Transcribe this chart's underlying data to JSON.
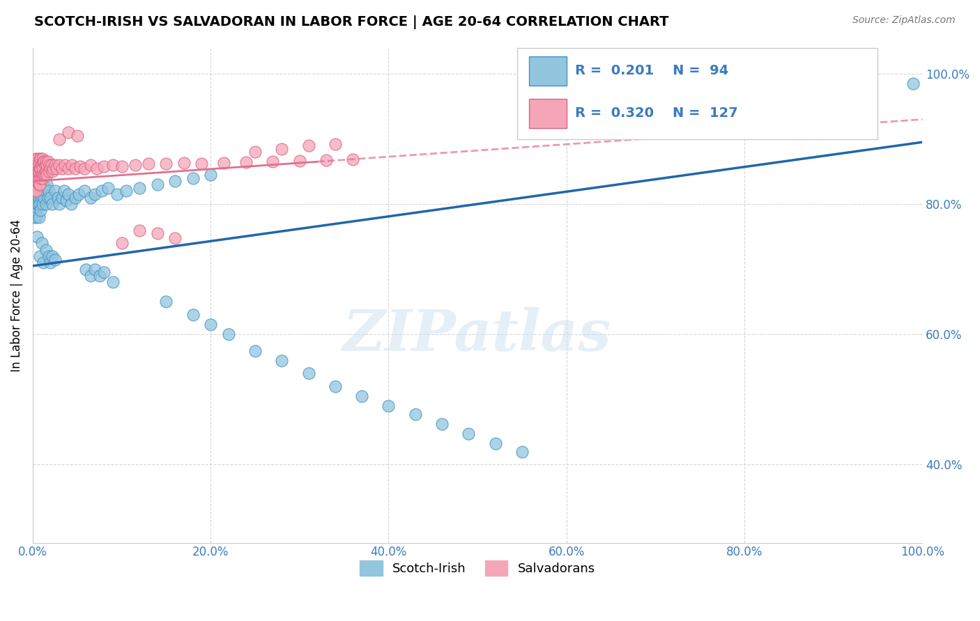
{
  "title": "SCOTCH-IRISH VS SALVADORAN IN LABOR FORCE | AGE 20-64 CORRELATION CHART",
  "source": "Source: ZipAtlas.com",
  "ylabel": "In Labor Force | Age 20-64",
  "xlim": [
    0,
    1.0
  ],
  "ylim": [
    0.28,
    1.04
  ],
  "xticks": [
    0.0,
    0.2,
    0.4,
    0.6,
    0.8,
    1.0
  ],
  "yticks": [
    0.4,
    0.6,
    0.8,
    1.0
  ],
  "xtick_labels": [
    "0.0%",
    "20.0%",
    "40.0%",
    "60.0%",
    "80.0%",
    "100.0%"
  ],
  "ytick_labels": [
    "40.0%",
    "60.0%",
    "80.0%",
    "100.0%"
  ],
  "blue_color": "#92c5de",
  "pink_color": "#f4a6b8",
  "blue_edge_color": "#4393c3",
  "pink_edge_color": "#e06080",
  "blue_line_color": "#2166ac",
  "pink_line_color": "#e07090",
  "R_blue": 0.201,
  "N_blue": 94,
  "R_pink": 0.32,
  "N_pink": 127,
  "legend_label_blue": "Scotch-Irish",
  "legend_label_pink": "Salvadorans",
  "watermark": "ZIPatlas",
  "blue_trend_x0": 0.0,
  "blue_trend_y0": 0.705,
  "blue_trend_x1": 1.0,
  "blue_trend_y1": 0.895,
  "pink_trend_x0": 0.0,
  "pink_trend_y0": 0.835,
  "pink_trend_x1": 0.32,
  "pink_trend_y1": 0.865,
  "pink_trend_dash_x0": 0.32,
  "pink_trend_dash_y0": 0.865,
  "pink_trend_dash_x1": 1.0,
  "pink_trend_dash_y1": 0.93
}
